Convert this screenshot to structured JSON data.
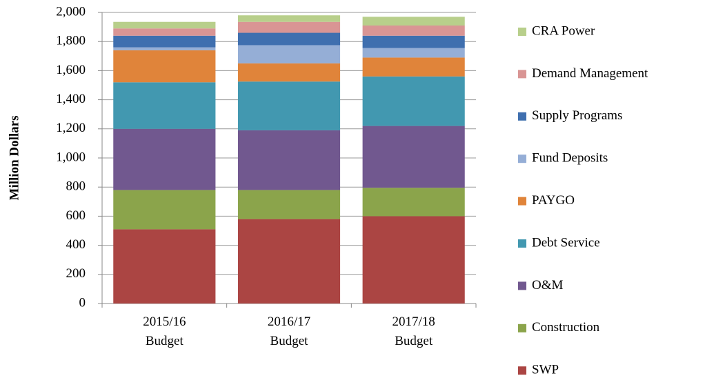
{
  "chart_data": {
    "type": "stacked_bar",
    "y_label": "Million Dollars",
    "categories": [
      "2015/16 Budget",
      "2016/17 Budget",
      "2017/18 Budget"
    ],
    "ylim": [
      0,
      2000
    ],
    "yticks": [
      0,
      200,
      400,
      600,
      800,
      {
        "value": 1000,
        "label": "1,000"
      },
      {
        "value": 1200,
        "label": "1,200"
      },
      {
        "value": 1400,
        "label": "1,400"
      },
      {
        "value": 1600,
        "label": "1,600"
      },
      {
        "value": 1800,
        "label": "1,800"
      },
      {
        "value": 2000,
        "label": "2,000"
      }
    ],
    "grid": true,
    "legend": "right",
    "series": [
      {
        "name": "SWP",
        "color": "#ab4543",
        "values": [
          510,
          580,
          600
        ]
      },
      {
        "name": "Construction",
        "color": "#8ba44b",
        "values": [
          270,
          200,
          195
        ]
      },
      {
        "name": "O&M",
        "color": "#71588f",
        "values": [
          420,
          410,
          425
        ]
      },
      {
        "name": "Debt Service",
        "color": "#4298b0",
        "values": [
          320,
          335,
          340
        ]
      },
      {
        "name": "PAYGO",
        "color": "#e0843a",
        "values": [
          220,
          125,
          130
        ]
      },
      {
        "name": "Fund Deposits",
        "color": "#95aed6",
        "values": [
          20,
          125,
          65
        ]
      },
      {
        "name": "Supply Programs",
        "color": "#3f6faf",
        "values": [
          80,
          85,
          85
        ]
      },
      {
        "name": "Demand Management",
        "color": "#d99594",
        "values": [
          50,
          75,
          70
        ]
      },
      {
        "name": "CRA Power",
        "color": "#b8cf8b",
        "values": [
          45,
          45,
          60
        ]
      }
    ]
  }
}
